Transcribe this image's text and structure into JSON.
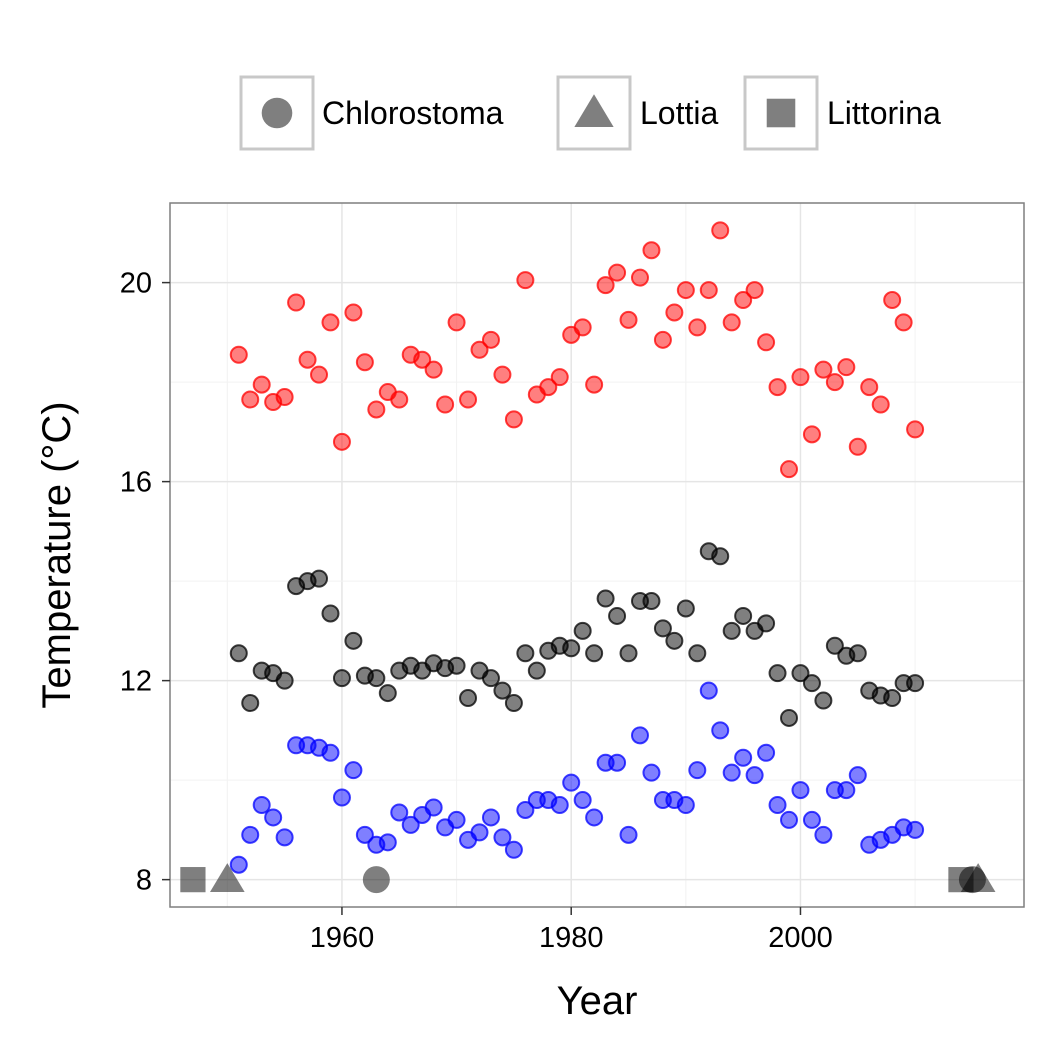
{
  "chart_data": {
    "type": "scatter",
    "xlabel": "Year",
    "ylabel": "Temperature (°C)",
    "xlim": [
      1945,
      2019.5
    ],
    "ylim": [
      7.45,
      21.6
    ],
    "x_ticks": [
      1960,
      1980,
      2000
    ],
    "x_tick_labels": [
      "1960",
      "1980",
      "2000"
    ],
    "y_ticks": [
      8,
      12,
      16,
      20
    ],
    "y_tick_labels": [
      "8",
      "12",
      "16",
      "20"
    ],
    "grid": true,
    "legend_position": "top",
    "legend": [
      {
        "label": "Chlorostoma",
        "shape": "circle"
      },
      {
        "label": "Lottia",
        "shape": "triangle"
      },
      {
        "label": "Littorina",
        "shape": "square"
      }
    ],
    "series": [
      {
        "name": "red",
        "color": "#ff0000",
        "points": [
          [
            1951,
            18.55
          ],
          [
            1952,
            17.65
          ],
          [
            1953,
            17.95
          ],
          [
            1954,
            17.6
          ],
          [
            1955,
            17.7
          ],
          [
            1956,
            19.6
          ],
          [
            1957,
            18.45
          ],
          [
            1958,
            18.15
          ],
          [
            1959,
            19.2
          ],
          [
            1960,
            16.8
          ],
          [
            1961,
            19.4
          ],
          [
            1962,
            18.4
          ],
          [
            1963,
            17.45
          ],
          [
            1964,
            17.8
          ],
          [
            1965,
            17.65
          ],
          [
            1966,
            18.55
          ],
          [
            1967,
            18.45
          ],
          [
            1968,
            18.25
          ],
          [
            1969,
            17.55
          ],
          [
            1970,
            19.2
          ],
          [
            1971,
            17.65
          ],
          [
            1972,
            18.65
          ],
          [
            1973,
            18.85
          ],
          [
            1974,
            18.15
          ],
          [
            1975,
            17.25
          ],
          [
            1976,
            20.05
          ],
          [
            1977,
            17.75
          ],
          [
            1978,
            17.9
          ],
          [
            1979,
            18.1
          ],
          [
            1980,
            18.95
          ],
          [
            1981,
            19.1
          ],
          [
            1982,
            17.95
          ],
          [
            1983,
            19.95
          ],
          [
            1984,
            20.2
          ],
          [
            1985,
            19.25
          ],
          [
            1986,
            20.1
          ],
          [
            1987,
            20.65
          ],
          [
            1988,
            18.85
          ],
          [
            1989,
            19.4
          ],
          [
            1990,
            19.85
          ],
          [
            1991,
            19.1
          ],
          [
            1992,
            19.85
          ],
          [
            1993,
            21.05
          ],
          [
            1994,
            19.2
          ],
          [
            1995,
            19.65
          ],
          [
            1996,
            19.85
          ],
          [
            1997,
            18.8
          ],
          [
            1998,
            17.9
          ],
          [
            1999,
            16.25
          ],
          [
            2000,
            18.1
          ],
          [
            2001,
            16.95
          ],
          [
            2002,
            18.25
          ],
          [
            2003,
            18.0
          ],
          [
            2004,
            18.3
          ],
          [
            2005,
            16.7
          ],
          [
            2006,
            17.9
          ],
          [
            2007,
            17.55
          ],
          [
            2008,
            19.65
          ],
          [
            2009,
            19.2
          ],
          [
            2010,
            17.05
          ]
        ]
      },
      {
        "name": "black",
        "color": "#000000",
        "points": [
          [
            1951,
            12.55
          ],
          [
            1952,
            11.55
          ],
          [
            1953,
            12.2
          ],
          [
            1954,
            12.15
          ],
          [
            1955,
            12.0
          ],
          [
            1956,
            13.9
          ],
          [
            1957,
            14.0
          ],
          [
            1958,
            14.05
          ],
          [
            1959,
            13.35
          ],
          [
            1960,
            12.05
          ],
          [
            1961,
            12.8
          ],
          [
            1962,
            12.1
          ],
          [
            1963,
            12.05
          ],
          [
            1964,
            11.75
          ],
          [
            1965,
            12.2
          ],
          [
            1966,
            12.3
          ],
          [
            1967,
            12.2
          ],
          [
            1968,
            12.35
          ],
          [
            1969,
            12.25
          ],
          [
            1970,
            12.3
          ],
          [
            1971,
            11.65
          ],
          [
            1972,
            12.2
          ],
          [
            1973,
            12.05
          ],
          [
            1974,
            11.8
          ],
          [
            1975,
            11.55
          ],
          [
            1976,
            12.55
          ],
          [
            1977,
            12.2
          ],
          [
            1978,
            12.6
          ],
          [
            1979,
            12.7
          ],
          [
            1980,
            12.65
          ],
          [
            1981,
            13.0
          ],
          [
            1982,
            12.55
          ],
          [
            1983,
            13.65
          ],
          [
            1984,
            13.3
          ],
          [
            1985,
            12.55
          ],
          [
            1986,
            13.6
          ],
          [
            1987,
            13.6
          ],
          [
            1988,
            13.05
          ],
          [
            1989,
            12.8
          ],
          [
            1990,
            13.45
          ],
          [
            1991,
            12.55
          ],
          [
            1992,
            14.6
          ],
          [
            1993,
            14.5
          ],
          [
            1994,
            13.0
          ],
          [
            1995,
            13.3
          ],
          [
            1996,
            13.0
          ],
          [
            1997,
            13.15
          ],
          [
            1998,
            12.15
          ],
          [
            1999,
            11.25
          ],
          [
            2000,
            12.15
          ],
          [
            2001,
            11.95
          ],
          [
            2002,
            11.6
          ],
          [
            2003,
            12.7
          ],
          [
            2004,
            12.5
          ],
          [
            2005,
            12.55
          ],
          [
            2006,
            11.8
          ],
          [
            2007,
            11.7
          ],
          [
            2008,
            11.65
          ],
          [
            2009,
            11.95
          ],
          [
            2010,
            11.95
          ]
        ]
      },
      {
        "name": "blue",
        "color": "#0000ff",
        "points": [
          [
            1951,
            8.3
          ],
          [
            1952,
            8.9
          ],
          [
            1953,
            9.5
          ],
          [
            1954,
            9.25
          ],
          [
            1955,
            8.85
          ],
          [
            1956,
            10.7
          ],
          [
            1957,
            10.7
          ],
          [
            1958,
            10.65
          ],
          [
            1959,
            10.55
          ],
          [
            1960,
            9.65
          ],
          [
            1961,
            10.2
          ],
          [
            1962,
            8.9
          ],
          [
            1963,
            8.7
          ],
          [
            1964,
            8.75
          ],
          [
            1965,
            9.35
          ],
          [
            1966,
            9.1
          ],
          [
            1967,
            9.3
          ],
          [
            1968,
            9.45
          ],
          [
            1969,
            9.05
          ],
          [
            1970,
            9.2
          ],
          [
            1971,
            8.8
          ],
          [
            1972,
            8.95
          ],
          [
            1973,
            9.25
          ],
          [
            1974,
            8.85
          ],
          [
            1975,
            8.6
          ],
          [
            1976,
            9.4
          ],
          [
            1977,
            9.6
          ],
          [
            1978,
            9.6
          ],
          [
            1979,
            9.5
          ],
          [
            1980,
            9.95
          ],
          [
            1981,
            9.6
          ],
          [
            1982,
            9.25
          ],
          [
            1983,
            10.35
          ],
          [
            1984,
            10.35
          ],
          [
            1985,
            8.9
          ],
          [
            1986,
            10.9
          ],
          [
            1987,
            10.15
          ],
          [
            1988,
            9.6
          ],
          [
            1989,
            9.6
          ],
          [
            1990,
            9.5
          ],
          [
            1991,
            10.2
          ],
          [
            1992,
            11.8
          ],
          [
            1993,
            11.0
          ],
          [
            1994,
            10.15
          ],
          [
            1995,
            10.45
          ],
          [
            1996,
            10.1
          ],
          [
            1997,
            10.55
          ],
          [
            1998,
            9.5
          ],
          [
            1999,
            9.2
          ],
          [
            2000,
            9.8
          ],
          [
            2001,
            9.2
          ],
          [
            2002,
            8.9
          ],
          [
            2003,
            9.8
          ],
          [
            2004,
            9.8
          ],
          [
            2005,
            10.1
          ],
          [
            2006,
            8.7
          ],
          [
            2007,
            8.8
          ],
          [
            2008,
            8.9
          ],
          [
            2009,
            9.05
          ],
          [
            2010,
            9.0
          ]
        ]
      }
    ],
    "shape_markers": [
      {
        "shape": "square",
        "x": 1947,
        "y": 8.0
      },
      {
        "shape": "triangle",
        "x": 1950,
        "y": 8.0
      },
      {
        "shape": "circle",
        "x": 1963,
        "y": 8.0
      },
      {
        "shape": "square",
        "x": 2014,
        "y": 8.0
      },
      {
        "shape": "circle",
        "x": 2015,
        "y": 8.0
      },
      {
        "shape": "triangle",
        "x": 2015.5,
        "y": 8.0
      }
    ]
  }
}
